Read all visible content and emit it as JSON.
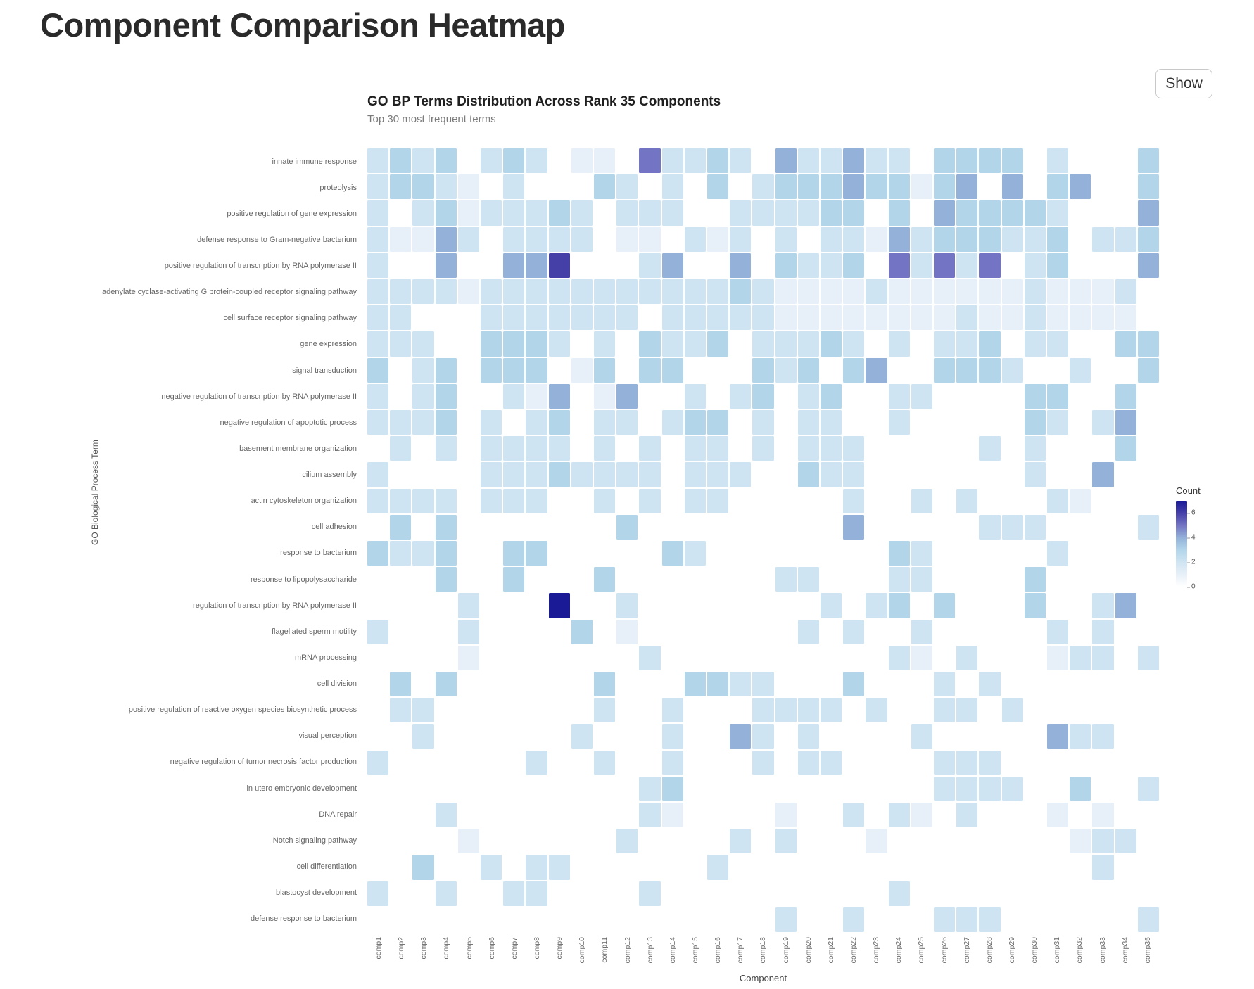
{
  "page": {
    "title": "Component Comparison Heatmap",
    "show_button_label": "Show"
  },
  "chart": {
    "title": "GO BP Terms Distribution Across Rank 35 Components",
    "subtitle": "Top 30 most frequent terms",
    "xlabel": "Component",
    "ylabel": "GO Biological Process Term",
    "legend": {
      "title": "Count",
      "ticks": [
        6,
        4,
        2,
        0
      ],
      "max_value": 7
    }
  },
  "chart_data": {
    "type": "heatmap",
    "title": "GO BP Terms Distribution Across Rank 35 Components",
    "subtitle": "Top 30 most frequent terms",
    "xlabel": "Component",
    "ylabel": "GO Biological Process Term",
    "legend_title": "Count",
    "value_range": [
      0,
      7
    ],
    "legend_tick_labels": [
      6,
      4,
      2,
      0
    ],
    "colors": {
      "scale": [
        "#ffffff",
        "#e7f0f8",
        "#cfe4f2",
        "#b2d5ea",
        "#93b1d9",
        "#7374c3",
        "#4540a8",
        "#1b1a96"
      ],
      "label_color": "#666666",
      "accent_dark": "#1b1a96"
    },
    "rows": [
      "innate immune response",
      "proteolysis",
      "positive regulation of gene expression",
      "defense response to Gram-negative bacterium",
      "positive regulation of transcription by RNA polymerase II",
      "adenylate cyclase-activating G protein-coupled receptor signaling pathway",
      "cell surface receptor signaling pathway",
      "gene expression",
      "signal transduction",
      "negative regulation of transcription by RNA polymerase II",
      "negative regulation of apoptotic process",
      "basement membrane organization",
      "cilium assembly",
      "actin cytoskeleton organization",
      "cell adhesion",
      "response to bacterium",
      "response to lipopolysaccharide",
      "regulation of transcription by RNA polymerase II",
      "flagellated sperm motility",
      "mRNA processing",
      "cell division",
      "positive regulation of reactive oxygen species biosynthetic process",
      "visual perception",
      "negative regulation of tumor necrosis factor production",
      "in utero embryonic development",
      "DNA repair",
      "Notch signaling pathway",
      "cell differentiation",
      "blastocyst development",
      "defense response to bacterium"
    ],
    "columns": [
      "comp1",
      "comp2",
      "comp3",
      "comp4",
      "comp5",
      "comp6",
      "comp7",
      "comp8",
      "comp9",
      "comp10",
      "comp11",
      "comp12",
      "comp13",
      "comp14",
      "comp15",
      "comp16",
      "comp17",
      "comp18",
      "comp19",
      "comp20",
      "comp21",
      "comp22",
      "comp23",
      "comp24",
      "comp25",
      "comp26",
      "comp27",
      "comp28",
      "comp29",
      "comp30",
      "comp31",
      "comp32",
      "comp33",
      "comp34",
      "comp35"
    ],
    "values": [
      [
        2,
        3,
        2,
        3,
        0,
        2,
        3,
        2,
        0,
        1,
        1,
        0,
        5,
        2,
        2,
        3,
        2,
        0,
        4,
        2,
        2,
        4,
        2,
        2,
        0,
        3,
        3,
        3,
        3,
        0,
        2,
        0,
        0,
        0,
        3
      ],
      [
        2,
        3,
        3,
        2,
        1,
        0,
        2,
        0,
        0,
        0,
        3,
        2,
        0,
        2,
        0,
        3,
        0,
        2,
        3,
        3,
        3,
        4,
        3,
        3,
        1,
        3,
        4,
        0,
        4,
        0,
        3,
        4,
        0,
        0,
        3
      ],
      [
        2,
        0,
        2,
        3,
        1,
        2,
        2,
        2,
        3,
        2,
        0,
        2,
        2,
        2,
        0,
        0,
        2,
        2,
        2,
        2,
        3,
        3,
        0,
        3,
        0,
        4,
        3,
        3,
        3,
        3,
        2,
        0,
        0,
        0,
        4
      ],
      [
        2,
        1,
        1,
        4,
        2,
        0,
        2,
        2,
        2,
        2,
        0,
        1,
        1,
        0,
        2,
        1,
        2,
        0,
        2,
        0,
        2,
        2,
        1,
        4,
        2,
        3,
        3,
        3,
        2,
        2,
        3,
        0,
        2,
        2,
        3
      ],
      [
        2,
        0,
        0,
        4,
        0,
        0,
        4,
        4,
        6,
        0,
        0,
        0,
        2,
        4,
        0,
        0,
        4,
        0,
        3,
        2,
        2,
        3,
        0,
        5,
        2,
        5,
        2,
        5,
        0,
        2,
        3,
        0,
        0,
        0,
        4
      ],
      [
        2,
        2,
        2,
        2,
        1,
        2,
        2,
        2,
        2,
        2,
        2,
        2,
        2,
        2,
        2,
        2,
        3,
        2,
        1,
        1,
        1,
        1,
        2,
        1,
        1,
        1,
        1,
        1,
        1,
        2,
        1,
        1,
        1,
        2,
        0
      ],
      [
        2,
        2,
        0,
        0,
        0,
        2,
        2,
        2,
        2,
        2,
        2,
        2,
        0,
        2,
        2,
        2,
        2,
        2,
        1,
        1,
        1,
        1,
        1,
        1,
        1,
        1,
        2,
        1,
        1,
        2,
        1,
        1,
        1,
        1,
        0
      ],
      [
        2,
        2,
        2,
        0,
        0,
        3,
        3,
        3,
        2,
        0,
        2,
        0,
        3,
        2,
        2,
        3,
        0,
        2,
        2,
        2,
        3,
        2,
        0,
        2,
        0,
        2,
        2,
        3,
        0,
        2,
        2,
        0,
        0,
        3,
        3
      ],
      [
        3,
        0,
        2,
        3,
        0,
        3,
        3,
        3,
        0,
        1,
        3,
        0,
        3,
        3,
        0,
        0,
        0,
        3,
        2,
        3,
        0,
        3,
        4,
        0,
        0,
        3,
        3,
        3,
        2,
        0,
        0,
        2,
        0,
        0,
        3
      ],
      [
        2,
        0,
        2,
        3,
        0,
        0,
        2,
        1,
        4,
        0,
        1,
        4,
        0,
        0,
        2,
        0,
        2,
        3,
        0,
        2,
        3,
        0,
        0,
        2,
        2,
        0,
        0,
        0,
        0,
        3,
        3,
        0,
        0,
        3,
        0
      ],
      [
        2,
        2,
        2,
        3,
        0,
        2,
        0,
        2,
        3,
        0,
        2,
        2,
        0,
        2,
        3,
        3,
        0,
        2,
        0,
        2,
        2,
        0,
        0,
        2,
        0,
        0,
        0,
        0,
        0,
        3,
        2,
        0,
        2,
        4,
        0
      ],
      [
        0,
        2,
        0,
        2,
        0,
        2,
        2,
        2,
        2,
        0,
        2,
        0,
        2,
        0,
        2,
        2,
        0,
        2,
        0,
        2,
        2,
        2,
        0,
        0,
        0,
        0,
        0,
        2,
        0,
        2,
        0,
        0,
        0,
        3,
        0
      ],
      [
        2,
        0,
        0,
        0,
        0,
        2,
        2,
        2,
        3,
        2,
        2,
        2,
        2,
        0,
        2,
        2,
        2,
        0,
        0,
        3,
        2,
        2,
        0,
        0,
        0,
        0,
        0,
        0,
        0,
        2,
        0,
        0,
        4,
        0,
        0
      ],
      [
        2,
        2,
        2,
        2,
        0,
        2,
        2,
        2,
        0,
        0,
        2,
        0,
        2,
        0,
        2,
        2,
        0,
        0,
        0,
        0,
        0,
        2,
        0,
        0,
        2,
        0,
        2,
        0,
        0,
        0,
        2,
        1,
        0,
        0,
        0
      ],
      [
        0,
        3,
        0,
        3,
        0,
        0,
        0,
        0,
        0,
        0,
        0,
        3,
        0,
        0,
        0,
        0,
        0,
        0,
        0,
        0,
        0,
        4,
        0,
        0,
        0,
        0,
        0,
        2,
        2,
        2,
        0,
        0,
        0,
        0,
        2
      ],
      [
        3,
        2,
        2,
        3,
        0,
        0,
        3,
        3,
        0,
        0,
        0,
        0,
        0,
        3,
        2,
        0,
        0,
        0,
        0,
        0,
        0,
        0,
        0,
        3,
        2,
        0,
        0,
        0,
        0,
        0,
        2,
        0,
        0,
        0,
        0
      ],
      [
        0,
        0,
        0,
        3,
        0,
        0,
        3,
        0,
        0,
        0,
        3,
        0,
        0,
        0,
        0,
        0,
        0,
        0,
        2,
        2,
        0,
        0,
        0,
        2,
        2,
        0,
        0,
        0,
        0,
        3,
        0,
        0,
        0,
        0,
        0
      ],
      [
        0,
        0,
        0,
        0,
        2,
        0,
        0,
        0,
        7,
        0,
        0,
        2,
        0,
        0,
        0,
        0,
        0,
        0,
        0,
        0,
        2,
        0,
        2,
        3,
        0,
        3,
        0,
        0,
        0,
        3,
        0,
        0,
        2,
        4,
        0
      ],
      [
        2,
        0,
        0,
        0,
        2,
        0,
        0,
        0,
        0,
        3,
        0,
        1,
        0,
        0,
        0,
        0,
        0,
        0,
        0,
        2,
        0,
        2,
        0,
        0,
        2,
        0,
        0,
        0,
        0,
        0,
        2,
        0,
        2,
        0,
        0
      ],
      [
        0,
        0,
        0,
        0,
        1,
        0,
        0,
        0,
        0,
        0,
        0,
        0,
        2,
        0,
        0,
        0,
        0,
        0,
        0,
        0,
        0,
        0,
        0,
        2,
        1,
        0,
        2,
        0,
        0,
        0,
        1,
        2,
        2,
        0,
        2
      ],
      [
        0,
        3,
        0,
        3,
        0,
        0,
        0,
        0,
        0,
        0,
        3,
        0,
        0,
        0,
        3,
        3,
        2,
        2,
        0,
        0,
        0,
        3,
        0,
        0,
        0,
        2,
        0,
        2,
        0,
        0,
        0,
        0,
        0,
        0,
        0
      ],
      [
        0,
        2,
        2,
        0,
        0,
        0,
        0,
        0,
        0,
        0,
        2,
        0,
        0,
        2,
        0,
        0,
        0,
        2,
        2,
        2,
        2,
        0,
        2,
        0,
        0,
        2,
        2,
        0,
        2,
        0,
        0,
        0,
        0,
        0,
        0
      ],
      [
        0,
        0,
        2,
        0,
        0,
        0,
        0,
        0,
        0,
        2,
        0,
        0,
        0,
        2,
        0,
        0,
        4,
        2,
        0,
        2,
        0,
        0,
        0,
        0,
        2,
        0,
        0,
        0,
        0,
        0,
        4,
        2,
        2,
        0,
        0
      ],
      [
        2,
        0,
        0,
        0,
        0,
        0,
        0,
        2,
        0,
        0,
        2,
        0,
        0,
        2,
        0,
        0,
        0,
        2,
        0,
        2,
        2,
        0,
        0,
        0,
        0,
        2,
        2,
        2,
        0,
        0,
        0,
        0,
        0,
        0,
        0
      ],
      [
        0,
        0,
        0,
        0,
        0,
        0,
        0,
        0,
        0,
        0,
        0,
        0,
        2,
        3,
        0,
        0,
        0,
        0,
        0,
        0,
        0,
        0,
        0,
        0,
        0,
        2,
        2,
        2,
        2,
        0,
        0,
        3,
        0,
        0,
        2
      ],
      [
        0,
        0,
        0,
        2,
        0,
        0,
        0,
        0,
        0,
        0,
        0,
        0,
        2,
        1,
        0,
        0,
        0,
        0,
        1,
        0,
        0,
        2,
        0,
        2,
        1,
        0,
        2,
        0,
        0,
        0,
        1,
        0,
        1,
        0,
        0
      ],
      [
        0,
        0,
        0,
        0,
        1,
        0,
        0,
        0,
        0,
        0,
        0,
        2,
        0,
        0,
        0,
        0,
        2,
        0,
        2,
        0,
        0,
        0,
        1,
        0,
        0,
        0,
        0,
        0,
        0,
        0,
        0,
        1,
        2,
        2,
        0
      ],
      [
        0,
        0,
        3,
        0,
        0,
        2,
        0,
        2,
        2,
        0,
        0,
        0,
        0,
        0,
        0,
        2,
        0,
        0,
        0,
        0,
        0,
        0,
        0,
        0,
        0,
        0,
        0,
        0,
        0,
        0,
        0,
        0,
        2,
        0,
        0
      ],
      [
        2,
        0,
        0,
        2,
        0,
        0,
        2,
        2,
        0,
        0,
        0,
        0,
        2,
        0,
        0,
        0,
        0,
        0,
        0,
        0,
        0,
        0,
        0,
        2,
        0,
        0,
        0,
        0,
        0,
        0,
        0,
        0,
        0,
        0,
        0
      ],
      [
        0,
        0,
        0,
        0,
        0,
        0,
        0,
        0,
        0,
        0,
        0,
        0,
        0,
        0,
        0,
        0,
        0,
        0,
        2,
        0,
        0,
        2,
        0,
        0,
        0,
        2,
        2,
        2,
        0,
        0,
        0,
        0,
        0,
        0,
        2
      ]
    ]
  }
}
